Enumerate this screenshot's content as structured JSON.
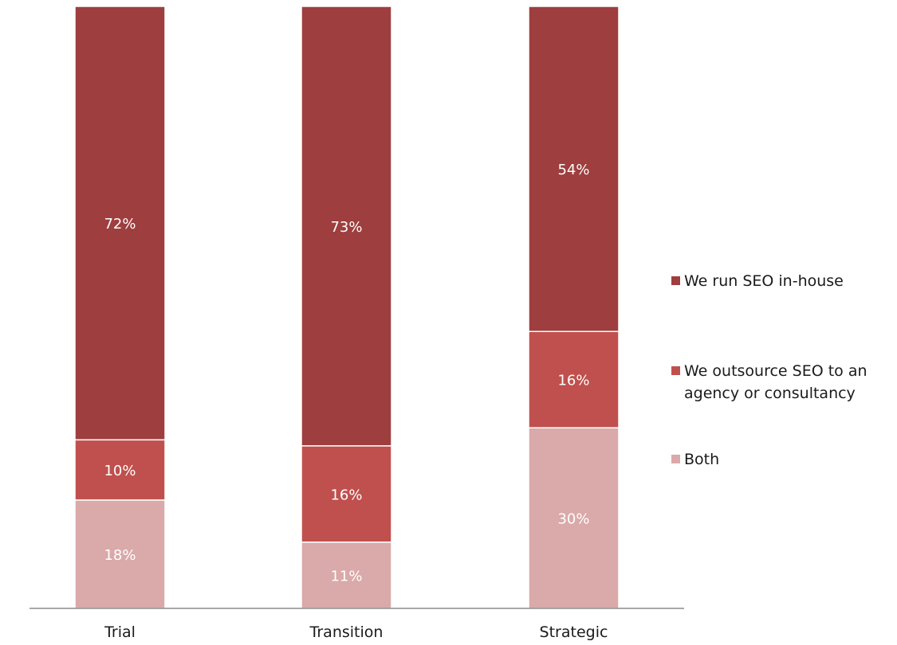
{
  "chart_data": {
    "type": "bar",
    "stacked": true,
    "percent_stacked": true,
    "categories": [
      "Trial",
      "Transition",
      "Strategic"
    ],
    "series": [
      {
        "name": "Both",
        "color": "#daa9a9",
        "values": [
          18,
          11,
          30
        ],
        "labels": [
          "18%",
          "11%",
          "30%"
        ]
      },
      {
        "name": "We outsource SEO to an agency or consultancy",
        "name_lines": [
          "We outsource SEO to an",
          "agency or consultancy"
        ],
        "color": "#c0504d",
        "values": [
          10,
          16,
          16
        ],
        "labels": [
          "10%",
          "16%",
          "16%"
        ]
      },
      {
        "name": "We run SEO in-house",
        "color": "#9e3e3e",
        "values": [
          72,
          73,
          54
        ],
        "labels": [
          "72%",
          "73%",
          "54%"
        ]
      }
    ],
    "legend_order": [
      2,
      1,
      0
    ],
    "legend_position": "right",
    "gridlines": false,
    "ylim": [
      0,
      100
    ]
  }
}
